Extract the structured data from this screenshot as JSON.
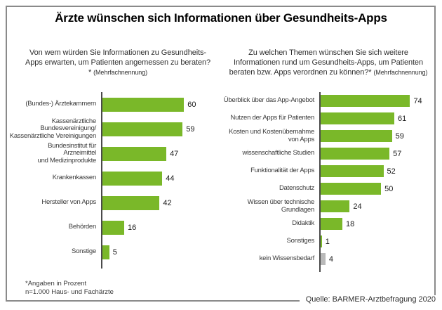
{
  "title": "Ärzte wünschen sich Informationen über Gesundheits-Apps",
  "colors": {
    "bar_green": "#7ab829",
    "bar_gray": "#b9b9b9",
    "axis": "#4a4a4a",
    "frame_border": "#8a8a8a"
  },
  "footnote": {
    "line1": "*Angaben in Prozent",
    "line2": "n=1.000 Haus- und Fachärzte"
  },
  "source": "Quelle: BARMER-Arztbefragung 2020",
  "chart_data": [
    {
      "type": "bar",
      "orientation": "horizontal",
      "unit": "percent",
      "title": "Von wem würden Sie Informationen zu Gesundheits-Apps erwarten, um Patienten angemessen zu beraten?*",
      "subtitle": "(Mehrfachnennung)",
      "categories": [
        "(Bundes-) Ärztekammern",
        "Kassenärztliche\nBundesvereinigung/\nKassenärztliche Vereinigungen",
        "Bundesinstitut für\nArzneimittel\nund Medizinprodukte",
        "Krankenkassen",
        "Hersteller von Apps",
        "Behörden",
        "Sonstige"
      ],
      "values": [
        60,
        59,
        47,
        44,
        42,
        16,
        5
      ],
      "value_labels": true,
      "grid": false,
      "xmax_hint": 80
    },
    {
      "type": "bar",
      "orientation": "horizontal",
      "unit": "percent",
      "title": "Zu welchen Themen wünschen Sie sich weitere Informationen rund um Gesundheits-Apps, um Patienten beraten bzw. Apps verordnen zu können?*",
      "subtitle": "(Mehrfachnennung)",
      "categories": [
        "Überblick über das App-Angebot",
        "Nutzen der Apps für Patienten",
        "Kosten und Kostenübernahme\nvon Apps",
        "wissenschaftliche Studien",
        "Funktionalität der Apps",
        "Datenschutz",
        "Wissen über technische\nGrundlagen",
        "Didaktik",
        "Sonstiges",
        "kein Wissensbedarf"
      ],
      "values": [
        74,
        61,
        59,
        57,
        52,
        50,
        24,
        18,
        1,
        4
      ],
      "bar_colors": [
        null,
        null,
        null,
        null,
        null,
        null,
        null,
        null,
        null,
        "#b9b9b9"
      ],
      "value_labels": true,
      "grid": false,
      "xmax_hint": 90
    }
  ]
}
